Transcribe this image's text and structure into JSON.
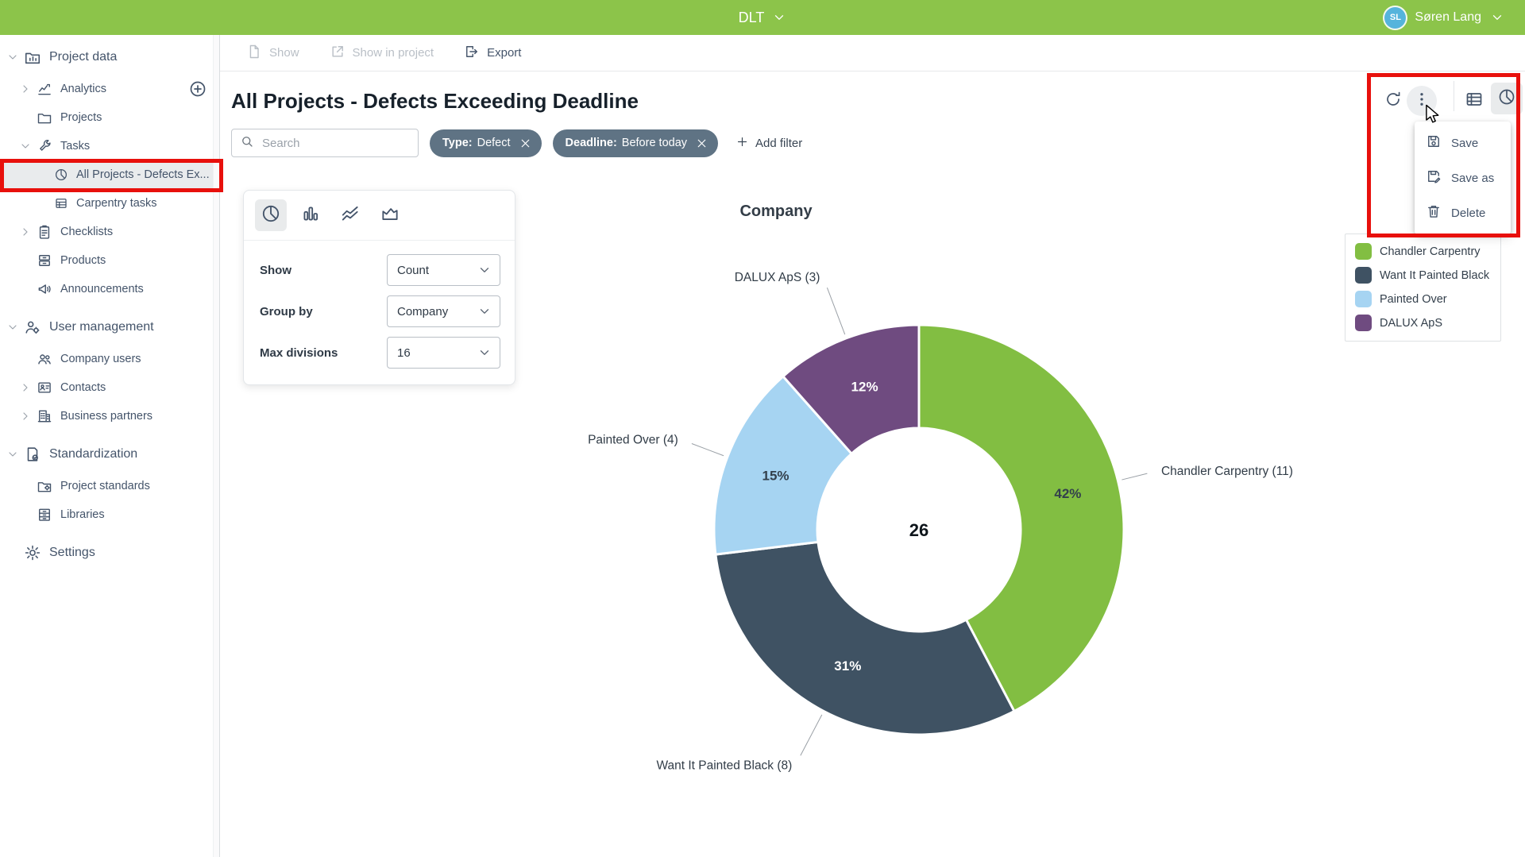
{
  "topbar": {
    "app_name": "DLT",
    "user_name": "Søren Lang",
    "user_initials": "SL"
  },
  "sidebar": {
    "items": [
      {
        "label": "Project data",
        "icon": "project-data",
        "level": 0,
        "chevron": "down"
      },
      {
        "label": "Analytics",
        "icon": "analytics",
        "level": 1,
        "chevron": "right",
        "add_button": true
      },
      {
        "label": "Projects",
        "icon": "folder",
        "level": 1
      },
      {
        "label": "Tasks",
        "icon": "wrench",
        "level": 1,
        "chevron": "down"
      },
      {
        "label": "All Projects - Defects Ex...",
        "icon": "pie",
        "level": 2,
        "selected": true
      },
      {
        "label": "Carpentry tasks",
        "icon": "table",
        "level": 2
      },
      {
        "label": "Checklists",
        "icon": "clipboard",
        "level": 1,
        "chevron": "right"
      },
      {
        "label": "Products",
        "icon": "products",
        "level": 1
      },
      {
        "label": "Announcements",
        "icon": "megaphone",
        "level": 1
      },
      {
        "label": "User management",
        "icon": "user-gear",
        "level": 0,
        "chevron": "down"
      },
      {
        "label": "Company users",
        "icon": "users",
        "level": 1
      },
      {
        "label": "Contacts",
        "icon": "contact-card",
        "level": 1,
        "chevron": "right"
      },
      {
        "label": "Business partners",
        "icon": "building",
        "level": 1,
        "chevron": "right"
      },
      {
        "label": "Standardization",
        "icon": "doc-check",
        "level": 0,
        "chevron": "down"
      },
      {
        "label": "Project standards",
        "icon": "folder-gear",
        "level": 1
      },
      {
        "label": "Libraries",
        "icon": "archive",
        "level": 1
      },
      {
        "label": "Settings",
        "icon": "gear",
        "level": 0
      }
    ]
  },
  "toolbar": {
    "show": "Show",
    "show_in_project": "Show in project",
    "export": "Export"
  },
  "page": {
    "title": "All Projects - Defects Exceeding Deadline"
  },
  "filters": {
    "search_placeholder": "Search",
    "chips": [
      {
        "label": "Type",
        "value": "Defect"
      },
      {
        "label": "Deadline",
        "value": "Before today"
      }
    ],
    "add_label": "Add filter"
  },
  "view_settings": {
    "show_label": "Show",
    "show_value": "Count",
    "group_by_label": "Group by",
    "group_by_value": "Company",
    "max_divisions_label": "Max divisions",
    "max_divisions_value": "16"
  },
  "context_menu": {
    "items": [
      {
        "label": "Save",
        "icon": "save"
      },
      {
        "label": "Save as",
        "icon": "save-as"
      },
      {
        "label": "Delete",
        "icon": "trash"
      }
    ]
  },
  "chart_data": {
    "type": "pie",
    "subtype": "donut",
    "title": "Company",
    "center_total": 26,
    "series": [
      {
        "name": "Chandler Carpentry",
        "value": 11,
        "percent_label": "42%",
        "color": "#82BE42",
        "percent_color": "#33404C",
        "label_radius": 310
      },
      {
        "name": "Want It Painted Black",
        "value": 8,
        "percent_label": "31%",
        "color": "#3F5263",
        "percent_color": "#FFFFFF",
        "label_radius": 335
      },
      {
        "name": "Painted Over",
        "value": 4,
        "percent_label": "15%",
        "color": "#A6D4F2",
        "percent_color": "#33404C",
        "label_radius": 320
      },
      {
        "name": "DALUX ApS",
        "value": 3,
        "percent_label": "12%",
        "color": "#6F4B80",
        "percent_color": "#FFFFFF",
        "label_radius": 340
      }
    ],
    "labels_format": "name (value)",
    "legend_position": "right",
    "start_angle_deg": 0,
    "direction": "clockwise"
  },
  "colors": {
    "topbar_green": "#8CC44A",
    "chip_slate": "#5F7384",
    "annotation_red": "#E8100C",
    "sidebar_text": "#44546A"
  }
}
